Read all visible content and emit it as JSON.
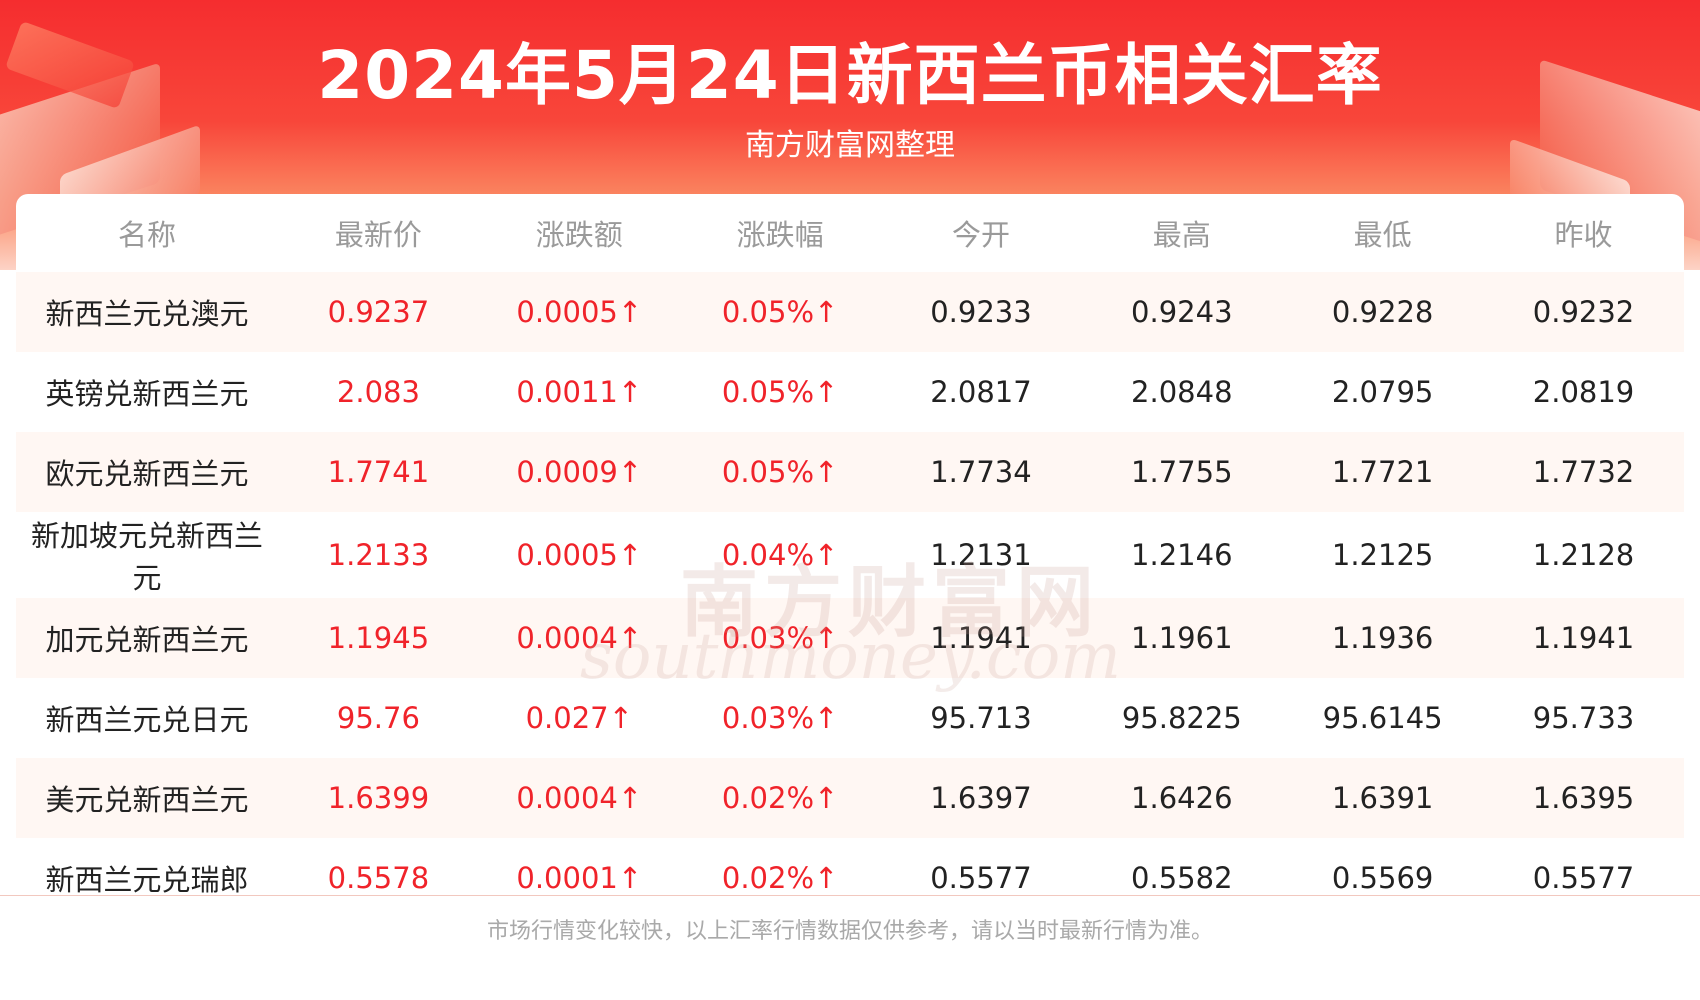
{
  "header": {
    "title": "2024年5月24日新西兰币相关汇率",
    "subtitle": "南方财富网整理"
  },
  "watermark": {
    "cn": "南方财富网",
    "en": "southmoney.com"
  },
  "table": {
    "columns": [
      "名称",
      "最新价",
      "涨跌额",
      "涨跌幅",
      "今开",
      "最高",
      "最低",
      "昨收"
    ],
    "rows": [
      {
        "name": "新西兰元兑澳元",
        "latest": "0.9237",
        "change": "0.0005↑",
        "change_pct": "0.05%↑",
        "open": "0.9233",
        "high": "0.9243",
        "low": "0.9228",
        "prev_close": "0.9232"
      },
      {
        "name": "英镑兑新西兰元",
        "latest": "2.083",
        "change": "0.0011↑",
        "change_pct": "0.05%↑",
        "open": "2.0817",
        "high": "2.0848",
        "low": "2.0795",
        "prev_close": "2.0819"
      },
      {
        "name": "欧元兑新西兰元",
        "latest": "1.7741",
        "change": "0.0009↑",
        "change_pct": "0.05%↑",
        "open": "1.7734",
        "high": "1.7755",
        "low": "1.7721",
        "prev_close": "1.7732"
      },
      {
        "name": "新加坡元兑新西兰元",
        "latest": "1.2133",
        "change": "0.0005↑",
        "change_pct": "0.04%↑",
        "open": "1.2131",
        "high": "1.2146",
        "low": "1.2125",
        "prev_close": "1.2128"
      },
      {
        "name": "加元兑新西兰元",
        "latest": "1.1945",
        "change": "0.0004↑",
        "change_pct": "0.03%↑",
        "open": "1.1941",
        "high": "1.1961",
        "low": "1.1936",
        "prev_close": "1.1941"
      },
      {
        "name": "新西兰元兑日元",
        "latest": "95.76",
        "change": "0.027↑",
        "change_pct": "0.03%↑",
        "open": "95.713",
        "high": "95.8225",
        "low": "95.6145",
        "prev_close": "95.733"
      },
      {
        "name": "美元兑新西兰元",
        "latest": "1.6399",
        "change": "0.0004↑",
        "change_pct": "0.02%↑",
        "open": "1.6397",
        "high": "1.6426",
        "low": "1.6391",
        "prev_close": "1.6395"
      },
      {
        "name": "新西兰元兑瑞郎",
        "latest": "0.5578",
        "change": "0.0001↑",
        "change_pct": "0.02%↑",
        "open": "0.5577",
        "high": "0.5582",
        "low": "0.5569",
        "prev_close": "0.5577"
      }
    ]
  },
  "footer": {
    "note": "市场行情变化较快，以上汇率行情数据仅供参考，请以当时最新行情为准。"
  },
  "colors": {
    "accent_red": "#f0232a",
    "header_red": "#f52d2f",
    "row_tint": "#fff7f3"
  }
}
